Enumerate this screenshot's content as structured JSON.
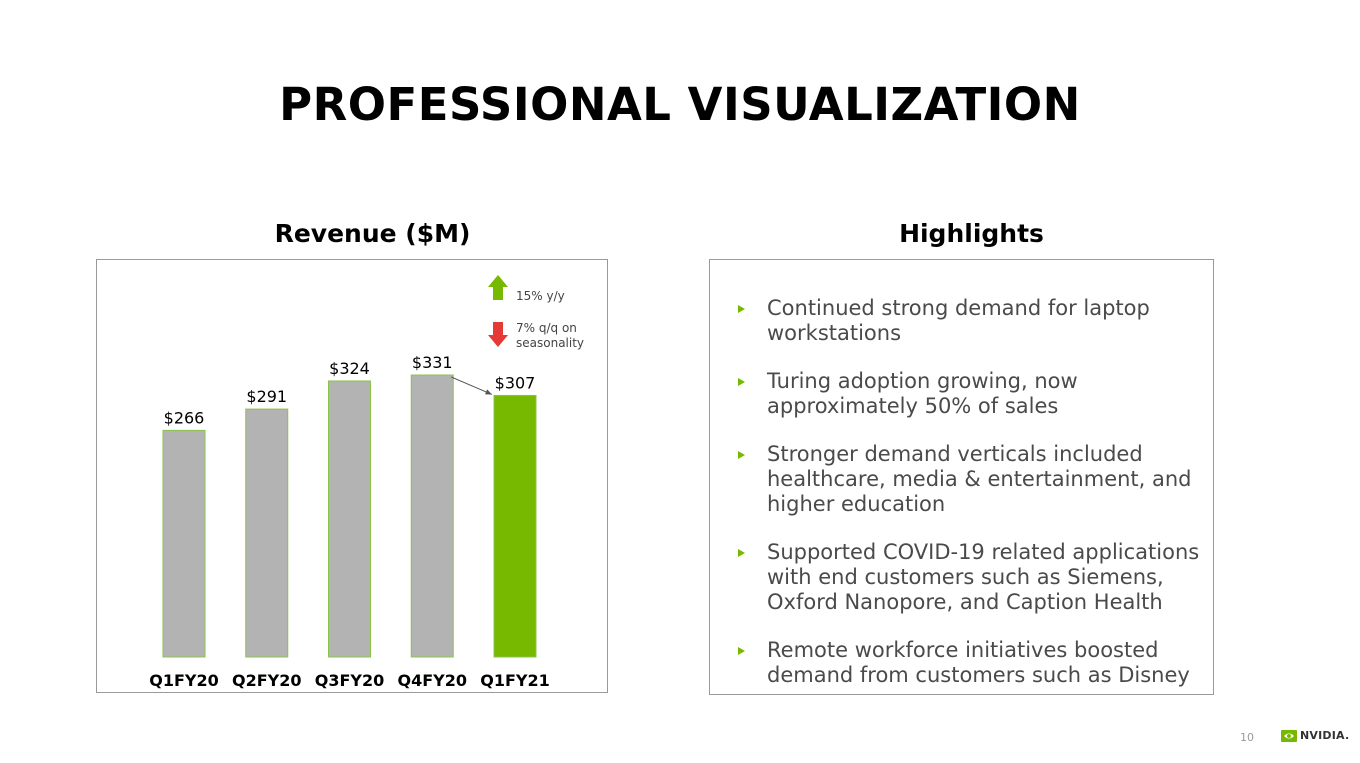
{
  "slide": {
    "title": "PROFESSIONAL VISUALIZATION",
    "page_number": "10",
    "logo_text": "NVIDIA."
  },
  "chart_data": {
    "type": "bar",
    "title": "Revenue ($M)",
    "categories": [
      "Q1FY20",
      "Q2FY20",
      "Q3FY20",
      "Q4FY20",
      "Q1FY21"
    ],
    "values": [
      266,
      291,
      324,
      331,
      307
    ],
    "data_labels": [
      "$266",
      "$291",
      "$324",
      "$331",
      "$307"
    ],
    "bar_colors": [
      "#b3b3b3",
      "#b3b3b3",
      "#b3b3b3",
      "#b3b3b3",
      "#76b900"
    ],
    "bar_border_color": "#8bc34a",
    "ylim": [
      0,
      331
    ],
    "grid": false,
    "legend": [
      {
        "label": "15% y/y",
        "icon": "up-arrow-icon",
        "color": "#76b900"
      },
      {
        "label": "7% q/q on\nseasonality",
        "icon": "down-arrow-icon",
        "color": "#e53935"
      }
    ],
    "annotation": {
      "from": "Q4FY20",
      "to": "Q1FY21",
      "type": "arrow"
    }
  },
  "highlights": {
    "title": "Highlights",
    "bullet_color": "#76b900",
    "items": [
      "Continued strong demand for laptop workstations",
      "Turing adoption growing, now approximately 50% of sales",
      "Stronger demand verticals included healthcare, media & entertainment, and higher education",
      "Supported COVID-19 related applications with end customers such as Siemens, Oxford Nanopore, and Caption Health",
      "Remote workforce initiatives boosted demand from customers such as Disney"
    ]
  }
}
